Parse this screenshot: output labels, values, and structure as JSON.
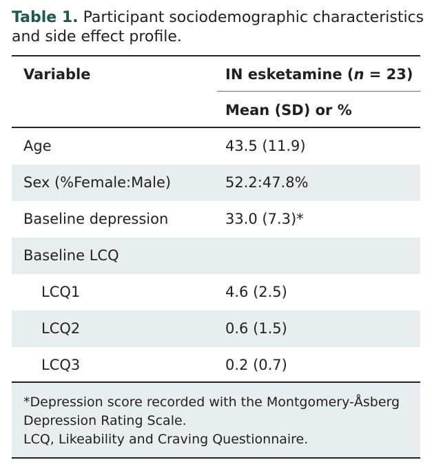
{
  "caption": {
    "label": "Table 1.",
    "text": "Participant sociodemographic characteristics and side effect profile."
  },
  "table": {
    "header": {
      "variable": "Variable",
      "group_prefix": "IN esketamine (",
      "group_n": "n",
      "group_suffix": " = 23)",
      "stat": "Mean (SD) or %"
    },
    "rows": [
      {
        "variable": "Age",
        "value": "43.5 (11.9)",
        "shaded": false,
        "indent": false
      },
      {
        "variable": "Sex (%Female:Male)",
        "value": "52.2:47.8%",
        "shaded": true,
        "indent": false
      },
      {
        "variable": "Baseline depression",
        "value": "33.0 (7.3)*",
        "shaded": false,
        "indent": false
      },
      {
        "variable": "Baseline LCQ",
        "value": "",
        "shaded": true,
        "indent": false
      },
      {
        "variable": "LCQ1",
        "value": "4.6 (2.5)",
        "shaded": false,
        "indent": true
      },
      {
        "variable": "LCQ2",
        "value": "0.6 (1.5)",
        "shaded": true,
        "indent": true
      },
      {
        "variable": "LCQ3",
        "value": "0.2 (0.7)",
        "shaded": false,
        "indent": true
      }
    ],
    "footnotes": [
      "*Depression score recorded with the Montgomery-Åsberg",
      "Depression Rating Scale.",
      "LCQ, Likeability and Craving Questionnaire."
    ]
  },
  "colors": {
    "label": "#1d5a4c",
    "shade": "#e6eef0",
    "text": "#231f20"
  }
}
